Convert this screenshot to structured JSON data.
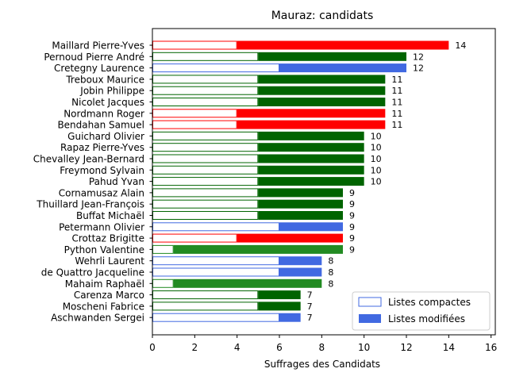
{
  "chart_data": {
    "type": "bar",
    "orientation": "horizontal",
    "stacked": true,
    "title": "Mauraz: candidats",
    "xlabel": "Suffrages des Candidats",
    "ylabel": "",
    "xlim": [
      0,
      16.2
    ],
    "xticks": [
      "0",
      "2",
      "4",
      "6",
      "8",
      "10",
      "12",
      "14",
      "16"
    ],
    "grid": false,
    "legend": {
      "position": "bottom-right",
      "entries": [
        {
          "label": "Listes compactes",
          "style": "outline"
        },
        {
          "label": "Listes modifiées",
          "style": "filled"
        }
      ]
    },
    "colors": {
      "red": "#ff0000",
      "darkgreen": "#006400",
      "blue": "#4169e1",
      "forestgreen": "#228b22"
    },
    "candidates": [
      {
        "name": "Maillard Pierre-Yves",
        "compact": 4,
        "modified": 10,
        "total": 14,
        "color": "red"
      },
      {
        "name": "Pernoud Pierre André",
        "compact": 5,
        "modified": 7,
        "total": 12,
        "color": "darkgreen"
      },
      {
        "name": "Cretegny Laurence",
        "compact": 6,
        "modified": 6,
        "total": 12,
        "color": "blue"
      },
      {
        "name": "Treboux Maurice",
        "compact": 5,
        "modified": 6,
        "total": 11,
        "color": "darkgreen"
      },
      {
        "name": "Jobin Philippe",
        "compact": 5,
        "modified": 6,
        "total": 11,
        "color": "darkgreen"
      },
      {
        "name": "Nicolet Jacques",
        "compact": 5,
        "modified": 6,
        "total": 11,
        "color": "darkgreen"
      },
      {
        "name": "Nordmann Roger",
        "compact": 4,
        "modified": 7,
        "total": 11,
        "color": "red"
      },
      {
        "name": "Bendahan Samuel",
        "compact": 4,
        "modified": 7,
        "total": 11,
        "color": "red"
      },
      {
        "name": "Guichard Olivier",
        "compact": 5,
        "modified": 5,
        "total": 10,
        "color": "darkgreen"
      },
      {
        "name": "Rapaz Pierre-Yves",
        "compact": 5,
        "modified": 5,
        "total": 10,
        "color": "darkgreen"
      },
      {
        "name": "Chevalley Jean-Bernard",
        "compact": 5,
        "modified": 5,
        "total": 10,
        "color": "darkgreen"
      },
      {
        "name": "Freymond Sylvain",
        "compact": 5,
        "modified": 5,
        "total": 10,
        "color": "darkgreen"
      },
      {
        "name": "Pahud Yvan",
        "compact": 5,
        "modified": 5,
        "total": 10,
        "color": "darkgreen"
      },
      {
        "name": "Cornamusaz Alain",
        "compact": 5,
        "modified": 4,
        "total": 9,
        "color": "darkgreen"
      },
      {
        "name": "Thuillard Jean-François",
        "compact": 5,
        "modified": 4,
        "total": 9,
        "color": "darkgreen"
      },
      {
        "name": "Buffat Michaël",
        "compact": 5,
        "modified": 4,
        "total": 9,
        "color": "darkgreen"
      },
      {
        "name": "Petermann Olivier",
        "compact": 6,
        "modified": 3,
        "total": 9,
        "color": "blue"
      },
      {
        "name": "Crottaz Brigitte",
        "compact": 4,
        "modified": 5,
        "total": 9,
        "color": "red"
      },
      {
        "name": "Python Valentine",
        "compact": 1,
        "modified": 8,
        "total": 9,
        "color": "forestgreen"
      },
      {
        "name": "Wehrli Laurent",
        "compact": 6,
        "modified": 2,
        "total": 8,
        "color": "blue"
      },
      {
        "name": "de Quattro Jacqueline",
        "compact": 6,
        "modified": 2,
        "total": 8,
        "color": "blue"
      },
      {
        "name": "Mahaim Raphaël",
        "compact": 1,
        "modified": 7,
        "total": 8,
        "color": "forestgreen"
      },
      {
        "name": "Carenza Marco",
        "compact": 5,
        "modified": 2,
        "total": 7,
        "color": "darkgreen"
      },
      {
        "name": "Moscheni Fabrice",
        "compact": 5,
        "modified": 2,
        "total": 7,
        "color": "darkgreen"
      },
      {
        "name": "Aschwanden Sergei",
        "compact": 6,
        "modified": 1,
        "total": 7,
        "color": "blue"
      }
    ]
  }
}
